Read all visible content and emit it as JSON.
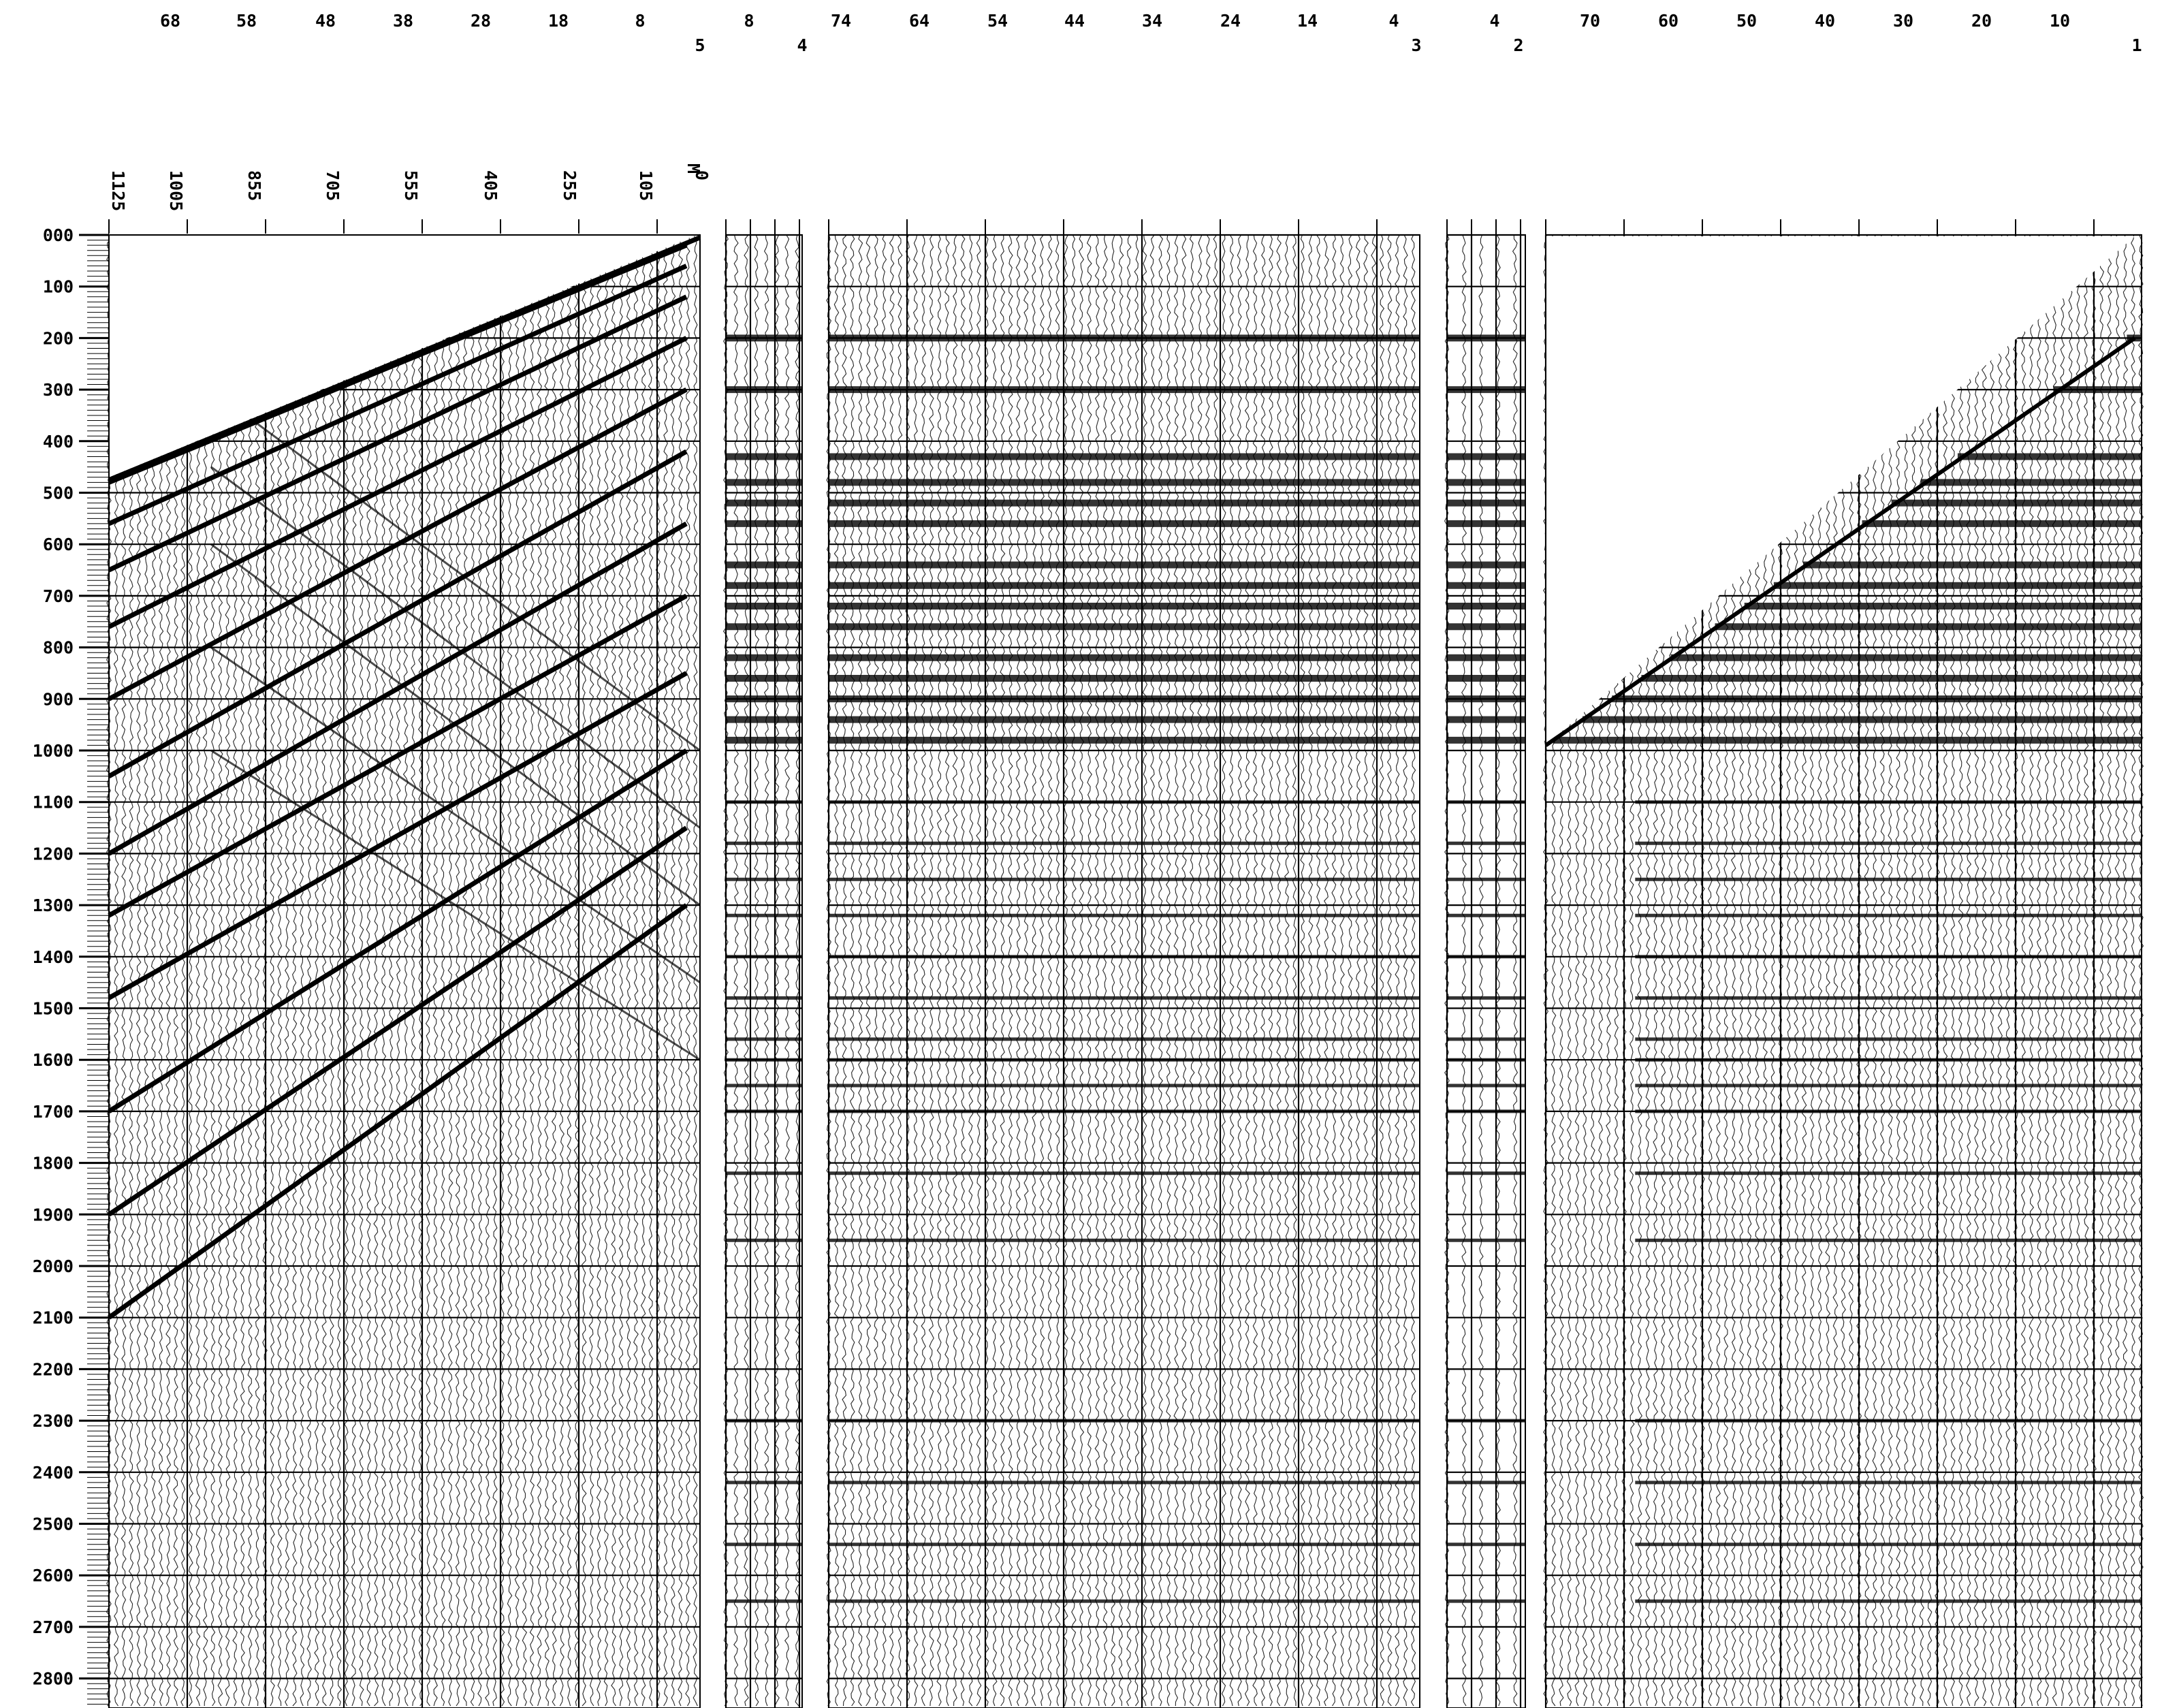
{
  "top_labels": {
    "row1": [
      "68",
      "58",
      "48",
      "38",
      "28",
      "18",
      "8",
      "8",
      "74",
      "64",
      "54",
      "44",
      "34",
      "24",
      "14",
      "4",
      "4",
      "70",
      "60",
      "50",
      "40",
      "30",
      "20",
      "10"
    ],
    "row2": [
      "5",
      "4",
      "3",
      "2",
      "1"
    ]
  },
  "offset_header": {
    "unit": "M",
    "values": [
      "1125",
      "1005",
      "855",
      "705",
      "555",
      "405",
      "255",
      "105",
      "0"
    ]
  },
  "time_axis": {
    "labels": [
      "000",
      "100",
      "200",
      "300",
      "400",
      "500",
      "600",
      "700",
      "800",
      "900",
      "1000",
      "1100",
      "1200",
      "1300",
      "1400",
      "1500",
      "1600",
      "1700",
      "1800",
      "1900",
      "2000",
      "2100",
      "2200",
      "2300",
      "2400",
      "2500",
      "2600",
      "2700",
      "2800"
    ]
  },
  "panels": [
    {
      "id": "panel-5",
      "number": "5",
      "content": "offset gather with linear first-arrival moveout"
    },
    {
      "id": "panel-4",
      "number": "4"
    },
    {
      "id": "panel-3",
      "number": "3"
    },
    {
      "id": "panel-2",
      "number": "2"
    },
    {
      "id": "panel-1",
      "number": "1"
    }
  ],
  "colors": {
    "ink": "#000000",
    "paper": "#ffffff"
  }
}
